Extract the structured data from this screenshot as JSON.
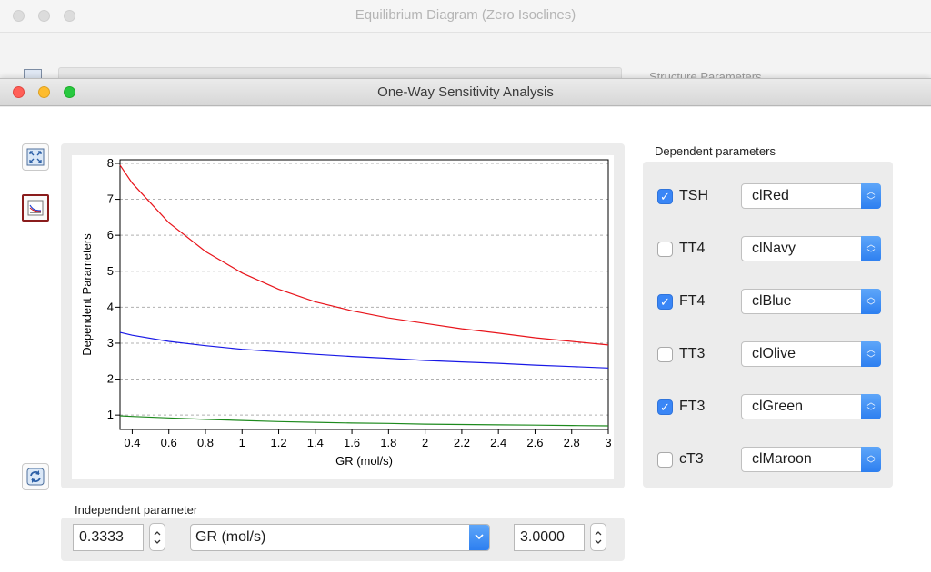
{
  "background_window": {
    "title": "Equilibrium Diagram (Zero Isoclines)",
    "partial_label": "Structure Parameters"
  },
  "window": {
    "title": "One-Way Sensitivity Analysis"
  },
  "toolbar": {
    "icons": [
      "fit-icon",
      "plot-options-icon",
      "refresh-icon"
    ]
  },
  "chart_data": {
    "type": "line",
    "xlabel": "GR (mol/s)",
    "ylabel": "Dependent Parameters",
    "xlim": [
      0.3333,
      3.0
    ],
    "ylim": [
      0.6,
      8.1
    ],
    "x_ticks": [
      "0.4",
      "0.6",
      "0.8",
      "1",
      "1.2",
      "1.4",
      "1.6",
      "1.8",
      "2",
      "2.2",
      "2.4",
      "2.6",
      "2.8",
      "3"
    ],
    "y_ticks": [
      "1",
      "2",
      "3",
      "4",
      "5",
      "6",
      "7",
      "8"
    ],
    "grid": "horizontal-dashed",
    "series": [
      {
        "color": "#e8141b",
        "x": [
          0.3333,
          0.4,
          0.6,
          0.8,
          1.0,
          1.2,
          1.4,
          1.6,
          1.8,
          2.0,
          2.2,
          2.4,
          2.6,
          2.8,
          3.0
        ],
        "y": [
          7.95,
          7.45,
          6.35,
          5.55,
          4.95,
          4.5,
          4.15,
          3.9,
          3.7,
          3.55,
          3.4,
          3.28,
          3.15,
          3.05,
          2.95
        ]
      },
      {
        "color": "#1818e6",
        "x": [
          0.3333,
          0.4,
          0.6,
          0.8,
          1.0,
          1.2,
          1.4,
          1.6,
          1.8,
          2.0,
          2.2,
          2.4,
          2.6,
          2.8,
          3.0
        ],
        "y": [
          3.3,
          3.22,
          3.05,
          2.93,
          2.83,
          2.76,
          2.69,
          2.63,
          2.58,
          2.52,
          2.48,
          2.44,
          2.39,
          2.35,
          2.31
        ]
      },
      {
        "color": "#1e8a1e",
        "x": [
          0.3333,
          0.4,
          0.6,
          0.8,
          1.0,
          1.2,
          1.4,
          1.6,
          1.8,
          2.0,
          2.2,
          2.4,
          2.6,
          2.8,
          3.0
        ],
        "y": [
          0.98,
          0.96,
          0.92,
          0.88,
          0.85,
          0.82,
          0.8,
          0.78,
          0.77,
          0.75,
          0.74,
          0.73,
          0.72,
          0.71,
          0.7
        ]
      }
    ]
  },
  "independent": {
    "label": "Independent parameter",
    "min_value": "0.3333",
    "parameter": "GR (mol/s)",
    "max_value": "3.0000"
  },
  "dependent": {
    "label": "Dependent parameters",
    "items": [
      {
        "name": "TSH",
        "checked": true,
        "color": "clRed"
      },
      {
        "name": "TT4",
        "checked": false,
        "color": "clNavy"
      },
      {
        "name": "FT4",
        "checked": true,
        "color": "clBlue"
      },
      {
        "name": "TT3",
        "checked": false,
        "color": "clOlive"
      },
      {
        "name": "FT3",
        "checked": true,
        "color": "clGreen"
      },
      {
        "name": "cT3",
        "checked": false,
        "color": "clMaroon"
      }
    ]
  }
}
